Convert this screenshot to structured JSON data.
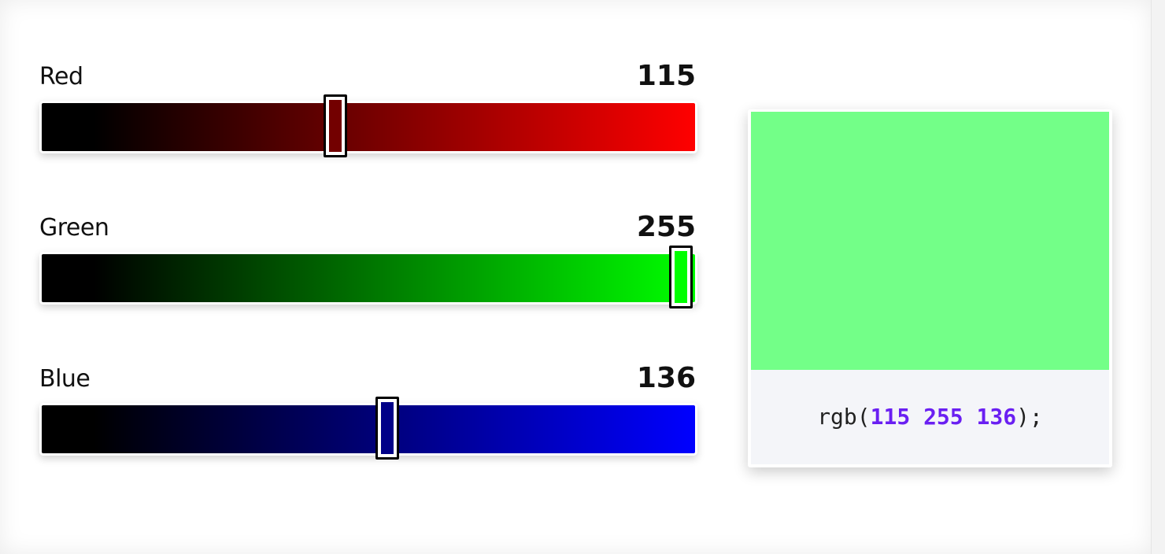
{
  "channels": [
    {
      "label": "Red",
      "value": 115,
      "max": 255,
      "color": "#ff0000"
    },
    {
      "label": "Green",
      "value": 255,
      "max": 255,
      "color": "#00ff00"
    },
    {
      "label": "Blue",
      "value": 136,
      "max": 255,
      "color": "#0000ff"
    }
  ],
  "preview": {
    "color": "#73ff88",
    "code_prefix": "rgb(",
    "code_r": "115",
    "code_g": "255",
    "code_b": "136",
    "code_suffix": ");",
    "number_color": "#6a1ff2"
  }
}
